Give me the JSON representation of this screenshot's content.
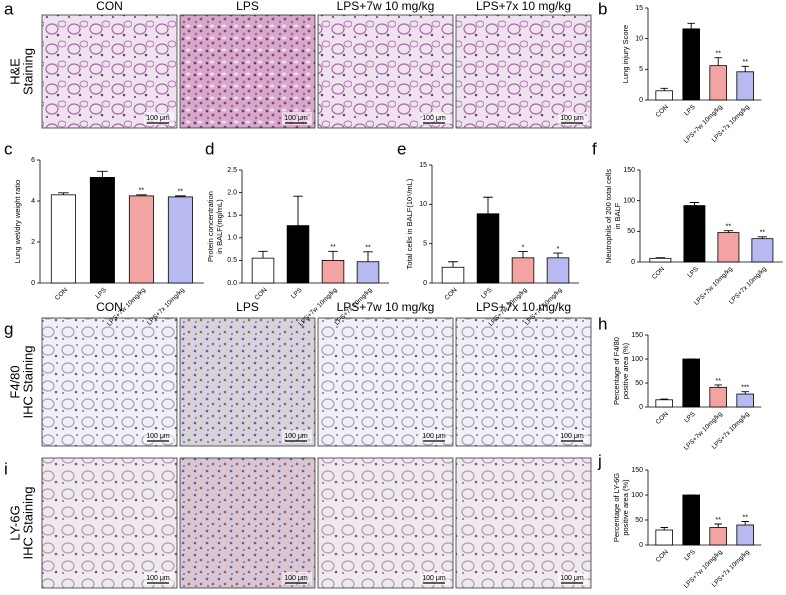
{
  "image_rows": [
    {
      "panel_label": "a",
      "row_label": [
        "H&E",
        "Staining"
      ],
      "columns": [
        "CON",
        "LPS",
        "LPS+7w 10 mg/kg",
        "LPS+7x 10 mg/kg"
      ],
      "scale_bar": "100 μm"
    },
    {
      "panel_label": "g",
      "row_label": [
        "F4/80",
        "IHC Staining"
      ],
      "columns": [
        "CON",
        "LPS",
        "LPS+7w 10 mg/kg",
        "LPS+7x 10 mg/kg"
      ],
      "scale_bar": "100 μm"
    },
    {
      "panel_label": "i",
      "row_label": [
        "LY-6G",
        "IHC Staining"
      ],
      "scale_bar": "100 μm"
    }
  ],
  "chart_data": [
    {
      "type": "bar",
      "panel_label": "b",
      "y_label": [
        "Lung injury Score"
      ],
      "categories": [
        "CON",
        "LPS",
        "LPS+7w 10mg/kg",
        "LPS+7x 10mg/kg"
      ],
      "values": [
        1.5,
        11.6,
        5.6,
        4.6
      ],
      "errors": [
        0.4,
        0.9,
        1.3,
        0.9
      ],
      "significance": [
        null,
        null,
        "**",
        "**"
      ],
      "colors": [
        "#ffffff",
        "#000000",
        "#f4a3a3",
        "#b9b9f2"
      ],
      "ylim": [
        0,
        15
      ],
      "yticks": [
        0,
        5,
        10,
        15
      ]
    },
    {
      "type": "bar",
      "panel_label": "c",
      "y_label": [
        "Lung wet/dry weight ratio"
      ],
      "categories": [
        "CON",
        "LPS",
        "LPS+7w 10mg/kg",
        "LPS+7x 10mg/kg"
      ],
      "values": [
        4.3,
        5.15,
        4.25,
        4.2
      ],
      "errors": [
        0.1,
        0.3,
        0.05,
        0.05
      ],
      "significance": [
        null,
        null,
        "**",
        "**"
      ],
      "colors": [
        "#ffffff",
        "#000000",
        "#f4a3a3",
        "#b9b9f2"
      ],
      "ylim": [
        0,
        6
      ],
      "yticks": [
        0,
        2,
        4,
        6
      ]
    },
    {
      "type": "bar",
      "panel_label": "d",
      "y_label": [
        "Protein concentration",
        "in BALF(mg/mL)"
      ],
      "categories": [
        "CON",
        "LPS",
        "LPS+7w 10mg/kg",
        "LPS+7x 10mg/kg"
      ],
      "values": [
        0.55,
        1.27,
        0.5,
        0.47
      ],
      "errors": [
        0.15,
        0.65,
        0.2,
        0.22
      ],
      "significance": [
        null,
        null,
        "**",
        "**"
      ],
      "colors": [
        "#ffffff",
        "#000000",
        "#f4a3a3",
        "#b9b9f2"
      ],
      "ylim": [
        0,
        2.5
      ],
      "yticks": [
        {
          "value": 0,
          "label": "0.0"
        },
        0.5,
        {
          "value": 1,
          "label": "1.0"
        },
        1.5,
        {
          "value": 2,
          "label": "2.0"
        },
        2.5
      ]
    },
    {
      "type": "bar",
      "panel_label": "e",
      "y_label": [
        "Total cells in BALF(10⁵/mL)"
      ],
      "categories": [
        "CON",
        "LPS",
        "LPS+7w 10mg/kg",
        "LPS+7x 10mg/kg"
      ],
      "values": [
        2.0,
        8.8,
        3.2,
        3.2
      ],
      "errors": [
        0.7,
        2.1,
        0.8,
        0.6
      ],
      "significance": [
        null,
        null,
        "*",
        "*"
      ],
      "colors": [
        "#ffffff",
        "#000000",
        "#f4a3a3",
        "#b9b9f2"
      ],
      "ylim": [
        0,
        15
      ],
      "yticks": [
        0,
        5,
        10,
        15
      ]
    },
    {
      "type": "bar",
      "panel_label": "f",
      "y_label": [
        "Neutrophils of 200 total cells",
        "in BALF"
      ],
      "categories": [
        "CON",
        "LPS",
        "LPS+7w 10mg/kg",
        "LPS+7x 10mg/kg"
      ],
      "values": [
        6,
        92,
        48,
        38
      ],
      "errors": [
        1,
        5,
        3,
        3
      ],
      "significance": [
        null,
        null,
        "**",
        "**"
      ],
      "colors": [
        "#ffffff",
        "#000000",
        "#f4a3a3",
        "#b9b9f2"
      ],
      "ylim": [
        0,
        150
      ],
      "yticks": [
        0,
        50,
        100,
        150
      ]
    },
    {
      "type": "bar",
      "panel_label": "h",
      "y_label": [
        "Percentage of F4/80",
        "positive area (%)"
      ],
      "categories": [
        "CON",
        "LPS",
        "LPS+7w 10mg/kg",
        "LPS+7x 10mg/kg"
      ],
      "values": [
        15,
        100,
        41,
        27
      ],
      "errors": [
        1.5,
        0,
        5,
        5
      ],
      "significance": [
        null,
        null,
        "**",
        "***"
      ],
      "colors": [
        "#ffffff",
        "#000000",
        "#f4a3a3",
        "#b9b9f2"
      ],
      "ylim": [
        0,
        150
      ],
      "yticks": [
        0,
        50,
        100,
        150
      ]
    },
    {
      "type": "bar",
      "panel_label": "j",
      "y_label": [
        "Percentage of LY-6G",
        "positive area (%)"
      ],
      "categories": [
        "CON",
        "LPS",
        "LPS+7w 10mg/kg",
        "LPS+7x 10mg/kg"
      ],
      "values": [
        30,
        100,
        35,
        40
      ],
      "errors": [
        5,
        0,
        7,
        7
      ],
      "significance": [
        null,
        null,
        "**",
        "**"
      ],
      "colors": [
        "#ffffff",
        "#000000",
        "#f4a3a3",
        "#b9b9f2"
      ],
      "ylim": [
        0,
        150
      ],
      "yticks": [
        0,
        50,
        100,
        150
      ]
    }
  ]
}
